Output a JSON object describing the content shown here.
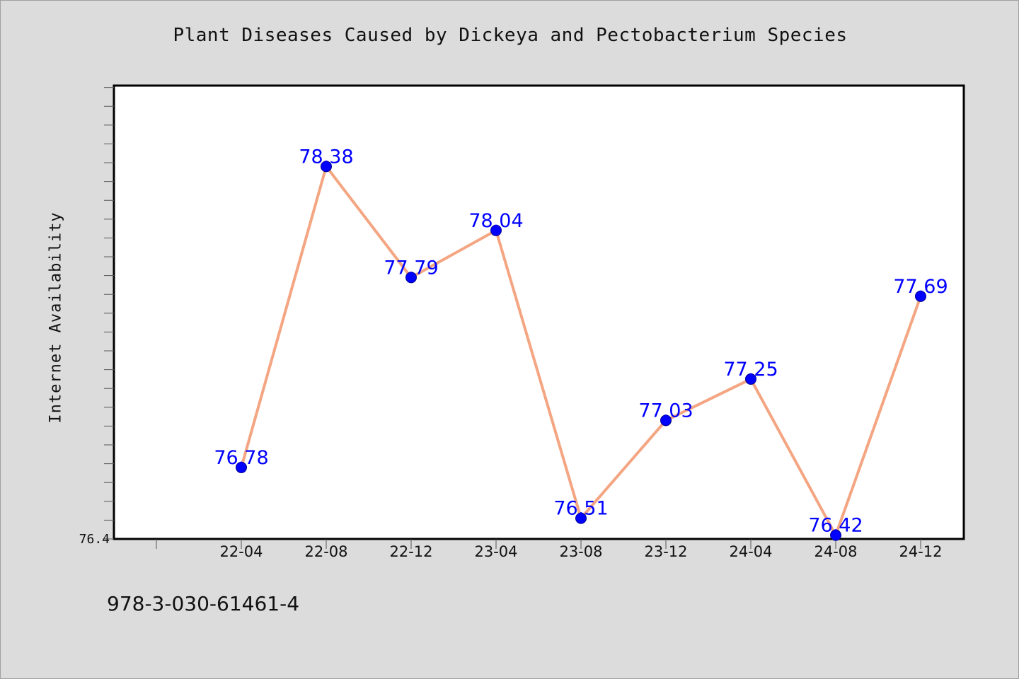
{
  "colors": {
    "background": "#dcdcdc",
    "plot_background": "#ffffff",
    "line": "#f4a582",
    "marker": "#0000ff",
    "data_label": "#0000ff"
  },
  "footer_text": "978-3-030-61461-4",
  "chart_data": {
    "type": "line",
    "title": "Plant Diseases Caused by Dickeya and Pectobacterium Species",
    "xlabel": "",
    "ylabel": "Internet Availability",
    "categories": [
      "22-04",
      "22-08",
      "22-12",
      "23-04",
      "23-08",
      "23-12",
      "24-04",
      "24-08",
      "24-12"
    ],
    "series": [
      {
        "values": [
          76.78,
          78.38,
          77.79,
          78.04,
          76.51,
          77.03,
          77.25,
          76.42,
          77.69
        ]
      }
    ],
    "ylim": [
      76.4,
      78.81
    ],
    "ytick_labels": [
      "76.4"
    ],
    "grid": false,
    "legend": "none"
  }
}
